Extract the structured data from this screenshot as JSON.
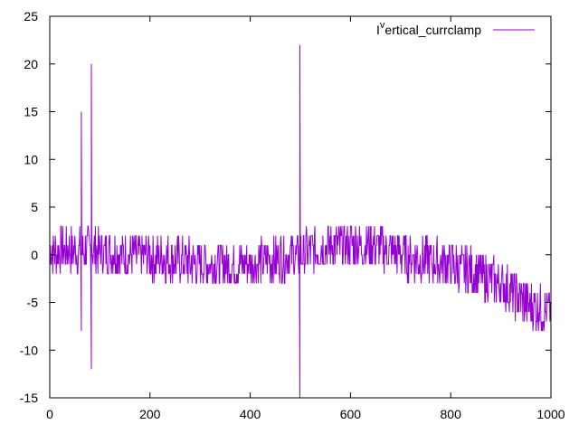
{
  "chart_data": {
    "type": "line",
    "title": "",
    "xlabel": "",
    "ylabel": "",
    "xlim": [
      0,
      1000
    ],
    "ylim": [
      -15,
      25
    ],
    "x_ticks": [
      0,
      200,
      400,
      600,
      800,
      1000
    ],
    "y_ticks": [
      -15,
      -10,
      -5,
      0,
      5,
      10,
      15,
      20,
      25
    ],
    "grid": false,
    "legend_position": "top-right",
    "series": [
      {
        "name": "I^vertical_currclamp",
        "color": "#9400d3",
        "anchors": [
          [
            0,
            0.5
          ],
          [
            60,
            0.5
          ],
          [
            100,
            0.5
          ],
          [
            150,
            0
          ],
          [
            250,
            -0.5
          ],
          [
            300,
            -1
          ],
          [
            400,
            -1
          ],
          [
            480,
            0
          ],
          [
            500,
            0
          ],
          [
            560,
            1
          ],
          [
            600,
            1
          ],
          [
            650,
            1
          ],
          [
            700,
            0
          ],
          [
            800,
            -1
          ],
          [
            850,
            -2
          ],
          [
            900,
            -3
          ],
          [
            950,
            -5
          ],
          [
            1000,
            -6
          ]
        ],
        "noise_amplitude": 2.5,
        "spikes": [
          {
            "x": 63,
            "values": [
              -8,
              15
            ]
          },
          {
            "x": 83,
            "values": [
              -12,
              20
            ]
          },
          {
            "x": 499,
            "values": [
              -15,
              22
            ]
          }
        ]
      }
    ]
  },
  "legend": {
    "label_main": "I",
    "label_sup": "v",
    "label_rest": "ertical_currclamp"
  }
}
